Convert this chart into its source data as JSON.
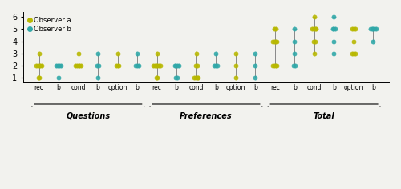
{
  "xlabels": [
    "rec",
    "b",
    "cond",
    "b",
    "option",
    "b",
    "rec",
    "b",
    "cond",
    "b",
    "option",
    "b",
    "rec",
    "b",
    "cond",
    "b",
    "option",
    "b"
  ],
  "color_a": "#b8b800",
  "color_b": "#30a8a8",
  "col_is_b": [
    false,
    true,
    false,
    true,
    false,
    true,
    false,
    true,
    false,
    true,
    false,
    true,
    false,
    true,
    false,
    true,
    false,
    true
  ],
  "observer_a_data": [
    [
      1,
      1,
      2,
      2,
      2,
      2,
      2,
      3
    ],
    [
      1,
      2,
      2,
      2,
      2,
      3
    ],
    [
      2,
      2,
      2,
      2,
      2,
      3
    ],
    [
      2,
      2,
      2,
      2,
      3
    ],
    [
      2,
      2,
      2,
      3
    ],
    [
      2,
      2,
      2,
      2,
      2
    ],
    [
      1,
      1,
      2,
      2,
      2,
      2,
      2,
      2,
      3
    ],
    [
      1,
      2,
      2,
      2,
      2,
      3
    ],
    [
      1,
      1,
      1,
      1,
      2,
      2,
      3
    ],
    [
      1,
      2,
      2,
      2,
      3
    ],
    [
      1,
      2,
      3
    ],
    [
      1,
      2,
      3
    ],
    [
      2,
      2,
      2,
      2,
      4,
      4,
      4,
      4,
      5,
      5
    ],
    [
      2,
      2,
      3,
      4,
      5
    ],
    [
      3,
      4,
      4,
      5,
      5,
      5,
      5,
      6
    ],
    [
      3,
      4,
      5
    ],
    [
      3,
      3,
      3,
      4,
      5,
      5,
      5
    ],
    [
      4,
      5
    ]
  ],
  "observer_b_data": [
    null,
    [
      1,
      2,
      2,
      2,
      2
    ],
    null,
    [
      1,
      2,
      2,
      3
    ],
    null,
    [
      2,
      2,
      2,
      3
    ],
    null,
    [
      1,
      1,
      2,
      2,
      2,
      2
    ],
    null,
    [
      2,
      2,
      2,
      3
    ],
    null,
    [
      1,
      2,
      3
    ],
    null,
    [
      2,
      2,
      3,
      4,
      5
    ],
    null,
    [
      3,
      4,
      5,
      5,
      5,
      6
    ],
    null,
    [
      4,
      5,
      5,
      5,
      5,
      5
    ]
  ],
  "ylim": [
    0.6,
    6.4
  ],
  "yticks": [
    1,
    2,
    3,
    4,
    5,
    6
  ],
  "figsize": [
    5.0,
    2.36
  ],
  "dpi": 100,
  "bg_color": "#f2f2ee",
  "group_info": [
    [
      0,
      5,
      "Questions"
    ],
    [
      6,
      11,
      "Preferences"
    ],
    [
      12,
      17,
      "Total"
    ]
  ],
  "marker_size": 6,
  "jitter_scale": 0.07
}
